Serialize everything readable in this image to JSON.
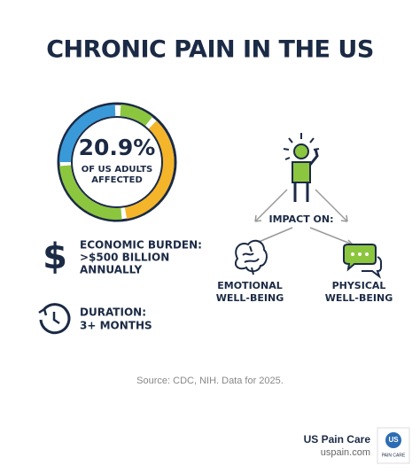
{
  "title": "CHRONIC PAIN IN THE US",
  "stat": {
    "value": "20.9%",
    "label_lines": [
      "OF US ADULTS",
      "AFFECTED"
    ]
  },
  "economic": {
    "icon": "$",
    "lines": [
      "ECONOMIC BURDEN:",
      ">$500 BILLION",
      "ANNUALLY"
    ]
  },
  "duration": {
    "lines": [
      "DURATION:",
      "3+ MONTHS"
    ]
  },
  "impact": {
    "heading": "IMPACT ON:",
    "items": [
      {
        "lines": [
          "EMOTIONAL",
          "WELL-BEING"
        ]
      },
      {
        "lines": [
          "PHYSICAL",
          "WELL-BEING"
        ]
      }
    ]
  },
  "source": "Source: CDC, NIH. Data for 2025.",
  "brand": {
    "name": "US Pain Care",
    "url": "uspain.com",
    "logo_mark": "US",
    "logo_text": "PAIN CARE"
  }
}
